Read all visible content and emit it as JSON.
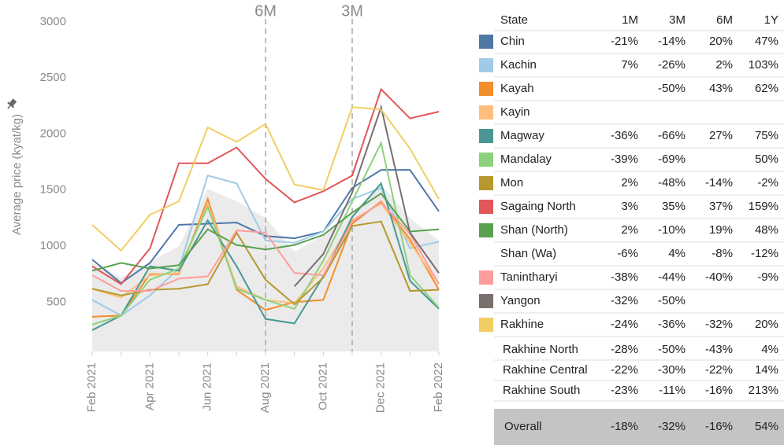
{
  "chart_data": {
    "type": "line",
    "y_label": "Average price (kyat/kg)",
    "categories": [
      "Feb 2021",
      null,
      "Apr 2021",
      null,
      "Jun 2021",
      null,
      "Aug 2021",
      null,
      "Oct 2021",
      null,
      "Dec 2021",
      null,
      "Feb 2022"
    ],
    "ylim": [
      60,
      3000
    ],
    "yticks": [
      500,
      1000,
      1500,
      2000,
      2500,
      3000
    ],
    "area": {
      "color": "#ebebeb",
      "values": [
        850,
        720,
        860,
        1000,
        1510,
        1400,
        1250,
        950,
        1100,
        1300,
        1550,
        1250,
        1050
      ]
    },
    "reference_lines": [
      {
        "label": "6M",
        "at": 6
      },
      {
        "label": "3M",
        "at": 9
      }
    ],
    "series": [
      {
        "name": "Chin",
        "color": "#4e79a7",
        "values": [
          880,
          670,
          850,
          1190,
          1200,
          1210,
          1090,
          1070,
          1130,
          1520,
          1680,
          1680,
          1310
        ]
      },
      {
        "name": "Kachin",
        "color": "#a0cbe8",
        "values": [
          520,
          380,
          560,
          800,
          1630,
          1560,
          1050,
          1030,
          1130,
          1420,
          1520,
          980,
          1040
        ]
      },
      {
        "name": "Kayah",
        "color": "#f28e2b",
        "values": [
          370,
          380,
          750,
          750,
          1420,
          610,
          430,
          500,
          520,
          1200,
          1400,
          1060,
          610
        ]
      },
      {
        "name": "Kayin",
        "color": "#ffbe7d",
        "values": [
          620,
          540,
          740,
          760,
          1380,
          640,
          520,
          490,
          800,
          1230,
          1380,
          1030,
          660
        ]
      },
      {
        "name": "Magway",
        "color": "#499894",
        "values": [
          250,
          380,
          820,
          780,
          1230,
          820,
          350,
          310,
          730,
          1260,
          1560,
          690,
          440
        ]
      },
      {
        "name": "Mandalay",
        "color": "#8cd17d",
        "values": [
          300,
          380,
          700,
          800,
          1350,
          620,
          520,
          440,
          870,
          1400,
          1920,
          740,
          450
        ]
      },
      {
        "name": "Mon",
        "color": "#b6992d",
        "values": [
          620,
          560,
          610,
          620,
          660,
          1120,
          700,
          480,
          720,
          1180,
          1220,
          600,
          610
        ]
      },
      {
        "name": "Sagaing North",
        "color": "#e15759",
        "values": [
          820,
          660,
          980,
          1740,
          1740,
          1880,
          1600,
          1390,
          1490,
          1630,
          2400,
          2140,
          2200
        ]
      },
      {
        "name": "Shan (North)",
        "color": "#59a14f",
        "values": [
          780,
          850,
          800,
          830,
          1150,
          1010,
          970,
          1010,
          1100,
          1300,
          1470,
          1130,
          1150
        ]
      },
      {
        "name": "Tanintharyi",
        "color": "#ff9d9a",
        "values": [
          740,
          600,
          600,
          710,
          730,
          1140,
          1120,
          760,
          740,
          1220,
          1390,
          1110,
          660
        ]
      },
      {
        "name": "Yangon",
        "color": "#79706e",
        "values": [
          null,
          null,
          null,
          null,
          null,
          null,
          null,
          640,
          930,
          1480,
          2240,
          1120,
          760
        ]
      },
      {
        "name": "Rakhine",
        "color": "#f1ce63",
        "values": [
          1190,
          960,
          1280,
          1400,
          2060,
          1930,
          2090,
          1550,
          1500,
          2240,
          2220,
          1870,
          1420
        ]
      }
    ]
  },
  "table": {
    "header": [
      "State",
      "1M",
      "3M",
      "6M",
      "1Y"
    ],
    "rows": [
      [
        "Chin",
        "-21%",
        "-14%",
        "20%",
        "47%"
      ],
      [
        "Kachin",
        "7%",
        "-26%",
        "2%",
        "103%"
      ],
      [
        "Kayah",
        null,
        "-50%",
        "43%",
        "62%"
      ],
      [
        "Kayin",
        null,
        null,
        null,
        null
      ],
      [
        "Magway",
        "-36%",
        "-66%",
        "27%",
        "75%"
      ],
      [
        "Mandalay",
        "-39%",
        "-69%",
        null,
        "50%"
      ],
      [
        "Mon",
        "2%",
        "-48%",
        "-14%",
        "-2%"
      ],
      [
        "Sagaing North",
        "3%",
        "35%",
        "37%",
        "159%"
      ],
      [
        "Shan (North)",
        "2%",
        "-10%",
        "19%",
        "48%"
      ],
      [
        "Shan (Wa)",
        "-6%",
        "4%",
        "-8%",
        "-12%"
      ],
      [
        "Tanintharyi",
        "-38%",
        "-44%",
        "-40%",
        "-9%"
      ],
      [
        "Yangon",
        "-32%",
        "-50%",
        null,
        null
      ],
      [
        "Rakhine",
        "-24%",
        "-36%",
        "-32%",
        "20%"
      ]
    ],
    "rakhine_breakdown": [
      [
        "Rakhine North",
        "-28%",
        "-50%",
        "-43%",
        "4%"
      ],
      [
        "Rakhine Central",
        "-22%",
        "-30%",
        "-22%",
        "14%"
      ],
      [
        "Rakhine South",
        "-23%",
        "-11%",
        "-16%",
        "213%"
      ]
    ],
    "total": [
      "Overall",
      "-18%",
      "-32%",
      "-16%",
      "54%"
    ]
  }
}
